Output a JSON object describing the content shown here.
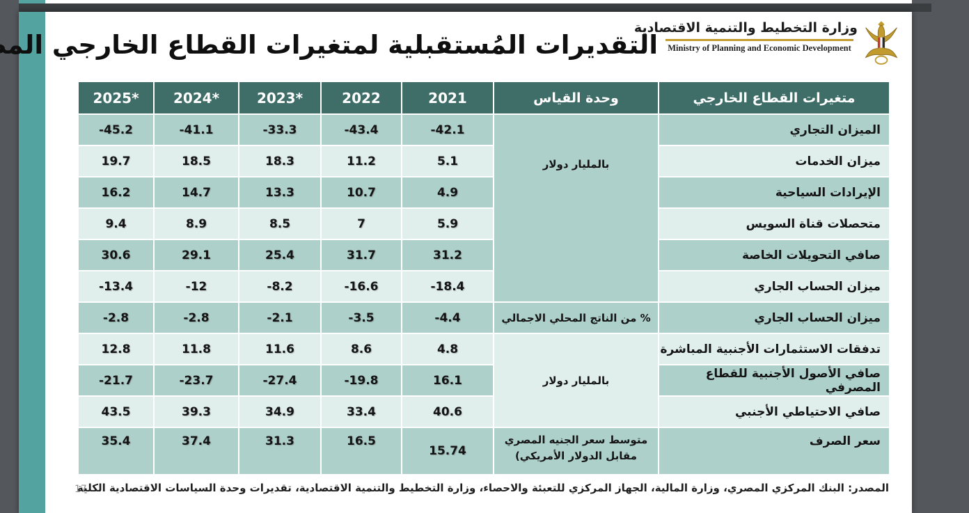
{
  "viewer": {
    "background_color": "#54585c"
  },
  "slide": {
    "title": "التقديرات المُستقبلية لمتغيرات القطاع الخارجي المصري",
    "accent_color": "#53a4a1",
    "page_number": "17",
    "source": "المصدر: البنك المركزي المصري، وزارة المالية، الجهاز المركزي للتعبئة والاحصاء، وزارة التخطيط والتنمية الاقتصادية، تقديرات وحدة السياسات الاقتصادية الكلية"
  },
  "logo": {
    "arabic_name": "وزارة التخطيط والتنمية الاقتصادية",
    "english_name": "Ministry of Planning and Economic Development",
    "emblem_icon": "egypt-eagle-emblem",
    "gold_color": "#c19b2e"
  },
  "table": {
    "colors": {
      "header_bg": "#3f6e69",
      "row_teal": "#aed0cb",
      "row_light": "#e0efec"
    },
    "header": {
      "years": [
        "2025*",
        "2024*",
        "2023*",
        "2022",
        "2021"
      ],
      "unit_label": "وحدة القياس",
      "variables_label": "متغيرات القطاع الخارجي"
    },
    "unit_groups": [
      {
        "label": "بالمليار دولار",
        "start": 0,
        "end": 5,
        "shade": "teal",
        "valign": "upper"
      },
      {
        "label": "% من الناتج المحلي الاجمالي",
        "start": 6,
        "end": 6,
        "shade": "teal",
        "valign": "center"
      },
      {
        "label": "بالمليار دولار",
        "start": 7,
        "end": 9,
        "shade": "light",
        "valign": "center"
      },
      {
        "label": "متوسط سعر الجنيه المصري مقابل الدولار الأمريكي)",
        "start": 10,
        "end": 10,
        "shade": "teal",
        "valign": "top2line"
      }
    ],
    "rows": [
      {
        "variable": "الميزان التجاري",
        "values": [
          "-45.2",
          "-41.1",
          "-33.3",
          "-43.4",
          "-42.1"
        ]
      },
      {
        "variable": "ميزان الخدمات",
        "values": [
          "19.7",
          "18.5",
          "18.3",
          "11.2",
          "5.1"
        ]
      },
      {
        "variable": "الإيرادات السياحية",
        "values": [
          "16.2",
          "14.7",
          "13.3",
          "10.7",
          "4.9"
        ]
      },
      {
        "variable": "متحصلات قناة السويس",
        "values": [
          "9.4",
          "8.9",
          "8.5",
          "7",
          "5.9"
        ]
      },
      {
        "variable": "صافي التحويلات الخاصة",
        "values": [
          "30.6",
          "29.1",
          "25.4",
          "31.7",
          "31.2"
        ]
      },
      {
        "variable": "ميزان الحساب الجاري",
        "values": [
          "-13.4",
          "-12",
          "-8.2",
          "-16.6",
          "-18.4"
        ]
      },
      {
        "variable": "ميزان الحساب الجاري",
        "values": [
          "-2.8",
          "-2.8",
          "-2.1",
          "-3.5",
          "-4.4"
        ]
      },
      {
        "variable": "تدفقات الاستثمارات الأجنبية المباشرة",
        "values": [
          "12.8",
          "11.8",
          "11.6",
          "8.6",
          "4.8"
        ]
      },
      {
        "variable": "صافي الأصول الأجنبية للقطاع المصرفي",
        "values": [
          "-21.7",
          "-23.7",
          "-27.4",
          "-19.8",
          "16.1"
        ]
      },
      {
        "variable": "صافي الاحتياطي الأجنبي",
        "values": [
          "43.5",
          "39.3",
          "34.9",
          "33.4",
          "40.6"
        ]
      },
      {
        "variable": "سعر الصرف",
        "values": [
          "35.4",
          "37.4",
          "31.3",
          "16.5",
          "15.74"
        ]
      }
    ]
  }
}
